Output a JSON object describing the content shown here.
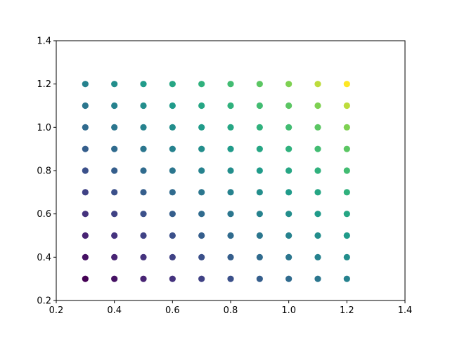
{
  "chart_data": {
    "type": "scatter",
    "title": "",
    "xlabel": "",
    "ylabel": "",
    "xlim": [
      0.2,
      1.4
    ],
    "ylim": [
      0.2,
      1.4
    ],
    "xticks": [
      "0.2",
      "0.4",
      "0.6",
      "0.8",
      "1.0",
      "1.2",
      "1.4"
    ],
    "yticks": [
      "0.2",
      "0.4",
      "0.6",
      "0.8",
      "1.0",
      "1.2",
      "1.4"
    ],
    "grid": false,
    "colormap": "viridis",
    "color_range": [
      0.6,
      2.4
    ],
    "points": [
      [
        0.3,
        0.3,
        0.6
      ],
      [
        0.4,
        0.3,
        0.7
      ],
      [
        0.5,
        0.3,
        0.8
      ],
      [
        0.6,
        0.3,
        0.9
      ],
      [
        0.7,
        0.3,
        1.0
      ],
      [
        0.8,
        0.3,
        1.1
      ],
      [
        0.9,
        0.3,
        1.2
      ],
      [
        1.0,
        0.3,
        1.3
      ],
      [
        1.1,
        0.3,
        1.4
      ],
      [
        1.2,
        0.3,
        1.5
      ],
      [
        0.3,
        0.4,
        0.7
      ],
      [
        0.4,
        0.4,
        0.8
      ],
      [
        0.5,
        0.4,
        0.9
      ],
      [
        0.6,
        0.4,
        1.0
      ],
      [
        0.7,
        0.4,
        1.1
      ],
      [
        0.8,
        0.4,
        1.2
      ],
      [
        0.9,
        0.4,
        1.3
      ],
      [
        1.0,
        0.4,
        1.4
      ],
      [
        1.1,
        0.4,
        1.5
      ],
      [
        1.2,
        0.4,
        1.6
      ],
      [
        0.3,
        0.5,
        0.8
      ],
      [
        0.4,
        0.5,
        0.9
      ],
      [
        0.5,
        0.5,
        1.0
      ],
      [
        0.6,
        0.5,
        1.1
      ],
      [
        0.7,
        0.5,
        1.2
      ],
      [
        0.8,
        0.5,
        1.3
      ],
      [
        0.9,
        0.5,
        1.4
      ],
      [
        1.0,
        0.5,
        1.5
      ],
      [
        1.1,
        0.5,
        1.6
      ],
      [
        1.2,
        0.5,
        1.7
      ],
      [
        0.3,
        0.6,
        0.9
      ],
      [
        0.4,
        0.6,
        1.0
      ],
      [
        0.5,
        0.6,
        1.1
      ],
      [
        0.6,
        0.6,
        1.2
      ],
      [
        0.7,
        0.6,
        1.3
      ],
      [
        0.8,
        0.6,
        1.4
      ],
      [
        0.9,
        0.6,
        1.5
      ],
      [
        1.0,
        0.6,
        1.6
      ],
      [
        1.1,
        0.6,
        1.7
      ],
      [
        1.2,
        0.6,
        1.8
      ],
      [
        0.3,
        0.7,
        1.0
      ],
      [
        0.4,
        0.7,
        1.1
      ],
      [
        0.5,
        0.7,
        1.2
      ],
      [
        0.6,
        0.7,
        1.3
      ],
      [
        0.7,
        0.7,
        1.4
      ],
      [
        0.8,
        0.7,
        1.5
      ],
      [
        0.9,
        0.7,
        1.6
      ],
      [
        1.0,
        0.7,
        1.7
      ],
      [
        1.1,
        0.7,
        1.8
      ],
      [
        1.2,
        0.7,
        1.9
      ],
      [
        0.3,
        0.8,
        1.1
      ],
      [
        0.4,
        0.8,
        1.2
      ],
      [
        0.5,
        0.8,
        1.3
      ],
      [
        0.6,
        0.8,
        1.4
      ],
      [
        0.7,
        0.8,
        1.5
      ],
      [
        0.8,
        0.8,
        1.6
      ],
      [
        0.9,
        0.8,
        1.7
      ],
      [
        1.0,
        0.8,
        1.8
      ],
      [
        1.1,
        0.8,
        1.9
      ],
      [
        1.2,
        0.8,
        2.0
      ],
      [
        0.3,
        0.9,
        1.2
      ],
      [
        0.4,
        0.9,
        1.3
      ],
      [
        0.5,
        0.9,
        1.4
      ],
      [
        0.6,
        0.9,
        1.5
      ],
      [
        0.7,
        0.9,
        1.6
      ],
      [
        0.8,
        0.9,
        1.7
      ],
      [
        0.9,
        0.9,
        1.8
      ],
      [
        1.0,
        0.9,
        1.9
      ],
      [
        1.1,
        0.9,
        2.0
      ],
      [
        1.2,
        0.9,
        2.1
      ],
      [
        0.3,
        1.0,
        1.3
      ],
      [
        0.4,
        1.0,
        1.4
      ],
      [
        0.5,
        1.0,
        1.5
      ],
      [
        0.6,
        1.0,
        1.6
      ],
      [
        0.7,
        1.0,
        1.7
      ],
      [
        0.8,
        1.0,
        1.8
      ],
      [
        0.9,
        1.0,
        1.9
      ],
      [
        1.0,
        1.0,
        2.0
      ],
      [
        1.1,
        1.0,
        2.1
      ],
      [
        1.2,
        1.0,
        2.2
      ],
      [
        0.3,
        1.1,
        1.4
      ],
      [
        0.4,
        1.1,
        1.5
      ],
      [
        0.5,
        1.1,
        1.6
      ],
      [
        0.6,
        1.1,
        1.7
      ],
      [
        0.7,
        1.1,
        1.8
      ],
      [
        0.8,
        1.1,
        1.9
      ],
      [
        0.9,
        1.1,
        2.0
      ],
      [
        1.0,
        1.1,
        2.1
      ],
      [
        1.1,
        1.1,
        2.2
      ],
      [
        1.2,
        1.1,
        2.3
      ],
      [
        0.3,
        1.2,
        1.5
      ],
      [
        0.4,
        1.2,
        1.6
      ],
      [
        0.5,
        1.2,
        1.7
      ],
      [
        0.6,
        1.2,
        1.8
      ],
      [
        0.7,
        1.2,
        1.9
      ],
      [
        0.8,
        1.2,
        2.0
      ],
      [
        0.9,
        1.2,
        2.1
      ],
      [
        1.0,
        1.2,
        2.2
      ],
      [
        1.1,
        1.2,
        2.3
      ],
      [
        1.2,
        1.2,
        2.4
      ]
    ]
  }
}
